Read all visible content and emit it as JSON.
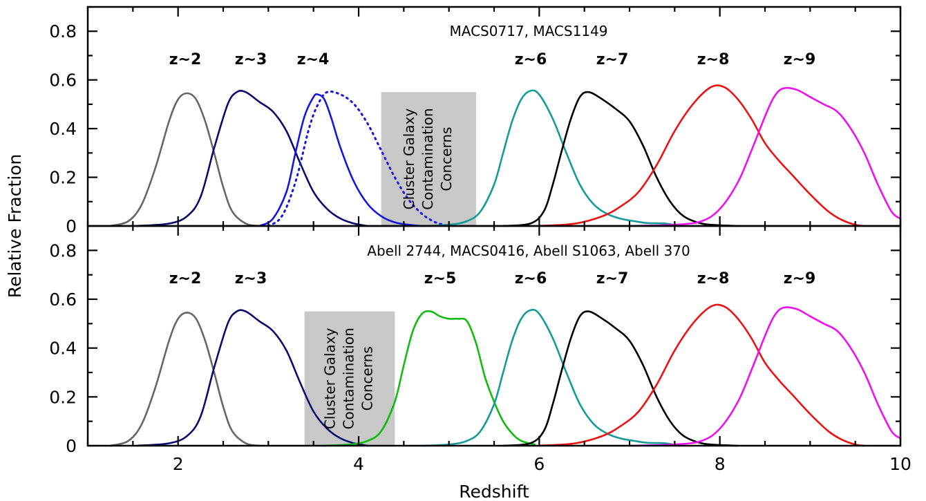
{
  "chart_data": {
    "type": "line",
    "xlabel": "Redshift",
    "ylabel": "Relative Fraction",
    "xlim": [
      1,
      10
    ],
    "ylim": [
      0,
      0.9
    ],
    "xticks": [
      "2",
      "4",
      "6",
      "8",
      "10"
    ],
    "yticks": [
      "0",
      "0.2",
      "0.4",
      "0.6",
      "0.8"
    ],
    "grid": false,
    "panels": [
      {
        "title": "MACS0717, MACS1149",
        "shaded_region": {
          "x": [
            4.25,
            5.3
          ],
          "y": [
            0,
            0.55
          ],
          "label": [
            "Cluster Galaxy",
            "Contamination",
            "Concerns"
          ]
        },
        "series": [
          {
            "name": "z~2",
            "color": "#666666",
            "dashed": false,
            "x": [
              1.25,
              1.45,
              1.6,
              1.75,
              1.9,
              2.0,
              2.1,
              2.2,
              2.3,
              2.4,
              2.5,
              2.6,
              2.75,
              2.9
            ],
            "y": [
              0.0,
              0.02,
              0.09,
              0.24,
              0.43,
              0.52,
              0.545,
              0.52,
              0.43,
              0.3,
              0.16,
              0.06,
              0.01,
              0.0
            ]
          },
          {
            "name": "z~3",
            "color": "#0a0a6e",
            "dashed": false,
            "x": [
              1.55,
              1.9,
              2.1,
              2.25,
              2.4,
              2.55,
              2.65,
              2.75,
              2.9,
              3.05,
              3.2,
              3.35,
              3.5,
              3.65,
              3.8,
              3.95,
              4.1
            ],
            "y": [
              0.0,
              0.01,
              0.04,
              0.12,
              0.32,
              0.5,
              0.55,
              0.55,
              0.51,
              0.47,
              0.39,
              0.26,
              0.14,
              0.07,
              0.03,
              0.01,
              0.0
            ]
          },
          {
            "name": "z~4",
            "color": "#1515e6",
            "dashed": false,
            "x": [
              2.9,
              3.05,
              3.2,
              3.3,
              3.4,
              3.5,
              3.55,
              3.62,
              3.7,
              3.8,
              3.95,
              4.1,
              4.25,
              4.4,
              4.55,
              4.7
            ],
            "y": [
              0.0,
              0.03,
              0.14,
              0.3,
              0.45,
              0.53,
              0.54,
              0.52,
              0.44,
              0.32,
              0.18,
              0.09,
              0.04,
              0.015,
              0.005,
              0.0
            ]
          },
          {
            "name": "z~4",
            "color": "#1515e6",
            "dashed": true,
            "x": [
              3.0,
              3.15,
              3.3,
              3.45,
              3.55,
              3.65,
              3.8,
              3.95,
              4.1,
              4.25,
              4.4,
              4.55,
              4.7,
              4.85,
              4.95,
              5.0
            ],
            "y": [
              0.0,
              0.04,
              0.18,
              0.4,
              0.5,
              0.55,
              0.54,
              0.5,
              0.42,
              0.31,
              0.2,
              0.11,
              0.05,
              0.015,
              0.005,
              0.0
            ]
          },
          {
            "name": "z~6",
            "color": "#159a9a",
            "dashed": false,
            "x": [
              4.7,
              5.0,
              5.2,
              5.35,
              5.5,
              5.6,
              5.7,
              5.8,
              5.9,
              6.0,
              6.15,
              6.3,
              6.45,
              6.6,
              6.75,
              6.9,
              7.05,
              7.2,
              7.4,
              7.55
            ],
            "y": [
              0.0,
              0.005,
              0.02,
              0.06,
              0.17,
              0.3,
              0.43,
              0.52,
              0.555,
              0.54,
              0.44,
              0.3,
              0.17,
              0.09,
              0.05,
              0.03,
              0.02,
              0.012,
              0.01,
              0.0
            ]
          },
          {
            "name": "z~7",
            "color": "#000000",
            "dashed": false,
            "x": [
              5.6,
              5.9,
              6.05,
              6.15,
              6.25,
              6.35,
              6.45,
              6.55,
              6.7,
              6.85,
              7.0,
              7.15,
              7.3,
              7.45,
              7.6,
              7.8,
              8.0,
              8.2
            ],
            "y": [
              0.0,
              0.01,
              0.06,
              0.17,
              0.31,
              0.44,
              0.53,
              0.55,
              0.52,
              0.48,
              0.43,
              0.33,
              0.2,
              0.1,
              0.04,
              0.01,
              0.003,
              0.0
            ]
          },
          {
            "name": "z~8",
            "color": "#ee1111",
            "dashed": false,
            "x": [
              6.0,
              6.4,
              6.7,
              6.9,
              7.1,
              7.3,
              7.5,
              7.7,
              7.9,
              8.05,
              8.2,
              8.35,
              8.5,
              8.65,
              8.8,
              9.0,
              9.2,
              9.35,
              9.5,
              9.6
            ],
            "y": [
              0.0,
              0.01,
              0.04,
              0.08,
              0.14,
              0.25,
              0.39,
              0.5,
              0.57,
              0.57,
              0.52,
              0.44,
              0.34,
              0.27,
              0.21,
              0.13,
              0.06,
              0.025,
              0.005,
              0.0
            ]
          },
          {
            "name": "z~9",
            "color": "#ee11ee",
            "dashed": false,
            "x": [
              7.0,
              7.5,
              7.8,
              8.0,
              8.2,
              8.35,
              8.5,
              8.6,
              8.7,
              8.85,
              9.0,
              9.15,
              9.3,
              9.45,
              9.6,
              9.75,
              9.9,
              10.0
            ],
            "y": [
              0.0,
              0.005,
              0.02,
              0.07,
              0.18,
              0.31,
              0.45,
              0.53,
              0.565,
              0.56,
              0.53,
              0.5,
              0.47,
              0.4,
              0.3,
              0.17,
              0.06,
              0.03
            ]
          }
        ]
      },
      {
        "title": "Abell 2744, MACS0416, Abell S1063, Abell 370",
        "shaded_region": {
          "x": [
            3.4,
            4.4
          ],
          "y": [
            0,
            0.55
          ],
          "label": [
            "Cluster Galaxy",
            "Contamination",
            "Concerns"
          ]
        },
        "series": [
          {
            "name": "z~2",
            "color": "#666666",
            "dashed": false,
            "x": [
              1.25,
              1.45,
              1.6,
              1.75,
              1.9,
              2.0,
              2.1,
              2.2,
              2.3,
              2.4,
              2.5,
              2.6,
              2.75,
              2.9
            ],
            "y": [
              0.0,
              0.02,
              0.09,
              0.24,
              0.43,
              0.52,
              0.545,
              0.52,
              0.43,
              0.3,
              0.16,
              0.06,
              0.01,
              0.0
            ]
          },
          {
            "name": "z~3",
            "color": "#0a0a6e",
            "dashed": false,
            "x": [
              1.55,
              1.9,
              2.1,
              2.25,
              2.4,
              2.55,
              2.65,
              2.75,
              2.9,
              3.05,
              3.2,
              3.35,
              3.5,
              3.65,
              3.8,
              3.95,
              4.1
            ],
            "y": [
              0.0,
              0.01,
              0.04,
              0.12,
              0.32,
              0.5,
              0.55,
              0.55,
              0.51,
              0.47,
              0.39,
              0.26,
              0.14,
              0.07,
              0.03,
              0.01,
              0.0
            ]
          },
          {
            "name": "z~5",
            "color": "#11bb11",
            "dashed": false,
            "x": [
              3.6,
              3.9,
              4.1,
              4.25,
              4.4,
              4.5,
              4.6,
              4.7,
              4.8,
              4.9,
              5.0,
              5.1,
              5.2,
              5.3,
              5.4,
              5.5,
              5.6,
              5.7,
              5.8,
              5.95
            ],
            "y": [
              0.0,
              0.005,
              0.02,
              0.06,
              0.18,
              0.33,
              0.47,
              0.54,
              0.55,
              0.53,
              0.52,
              0.52,
              0.51,
              0.42,
              0.28,
              0.18,
              0.1,
              0.05,
              0.02,
              0.005
            ]
          },
          {
            "name": "z~6",
            "color": "#159a9a",
            "dashed": false,
            "x": [
              4.7,
              5.0,
              5.2,
              5.35,
              5.5,
              5.6,
              5.7,
              5.8,
              5.9,
              6.0,
              6.15,
              6.3,
              6.45,
              6.6,
              6.75,
              6.9,
              7.05,
              7.2,
              7.4,
              7.55
            ],
            "y": [
              0.0,
              0.005,
              0.02,
              0.06,
              0.17,
              0.3,
              0.43,
              0.52,
              0.555,
              0.54,
              0.44,
              0.3,
              0.17,
              0.09,
              0.05,
              0.03,
              0.02,
              0.012,
              0.01,
              0.0
            ]
          },
          {
            "name": "z~7",
            "color": "#000000",
            "dashed": false,
            "x": [
              5.6,
              5.9,
              6.05,
              6.15,
              6.25,
              6.35,
              6.45,
              6.55,
              6.7,
              6.85,
              7.0,
              7.15,
              7.3,
              7.45,
              7.6,
              7.8,
              8.0,
              8.2
            ],
            "y": [
              0.0,
              0.01,
              0.06,
              0.17,
              0.31,
              0.44,
              0.53,
              0.55,
              0.52,
              0.48,
              0.43,
              0.33,
              0.2,
              0.1,
              0.04,
              0.01,
              0.003,
              0.0
            ]
          },
          {
            "name": "z~8",
            "color": "#ee1111",
            "dashed": false,
            "x": [
              6.0,
              6.4,
              6.7,
              6.9,
              7.1,
              7.3,
              7.5,
              7.7,
              7.9,
              8.05,
              8.2,
              8.35,
              8.5,
              8.65,
              8.8,
              9.0,
              9.2,
              9.35,
              9.5,
              9.6
            ],
            "y": [
              0.0,
              0.01,
              0.04,
              0.08,
              0.14,
              0.25,
              0.39,
              0.5,
              0.57,
              0.57,
              0.52,
              0.44,
              0.34,
              0.27,
              0.21,
              0.13,
              0.06,
              0.025,
              0.005,
              0.0
            ]
          },
          {
            "name": "z~9",
            "color": "#ee11ee",
            "dashed": false,
            "x": [
              7.0,
              7.5,
              7.8,
              8.0,
              8.2,
              8.35,
              8.5,
              8.6,
              8.7,
              8.85,
              9.0,
              9.15,
              9.3,
              9.45,
              9.6,
              9.75,
              9.9,
              10.0
            ],
            "y": [
              0.0,
              0.005,
              0.02,
              0.07,
              0.18,
              0.31,
              0.45,
              0.53,
              0.565,
              0.56,
              0.53,
              0.5,
              0.47,
              0.4,
              0.3,
              0.17,
              0.06,
              0.03
            ]
          }
        ]
      }
    ]
  }
}
